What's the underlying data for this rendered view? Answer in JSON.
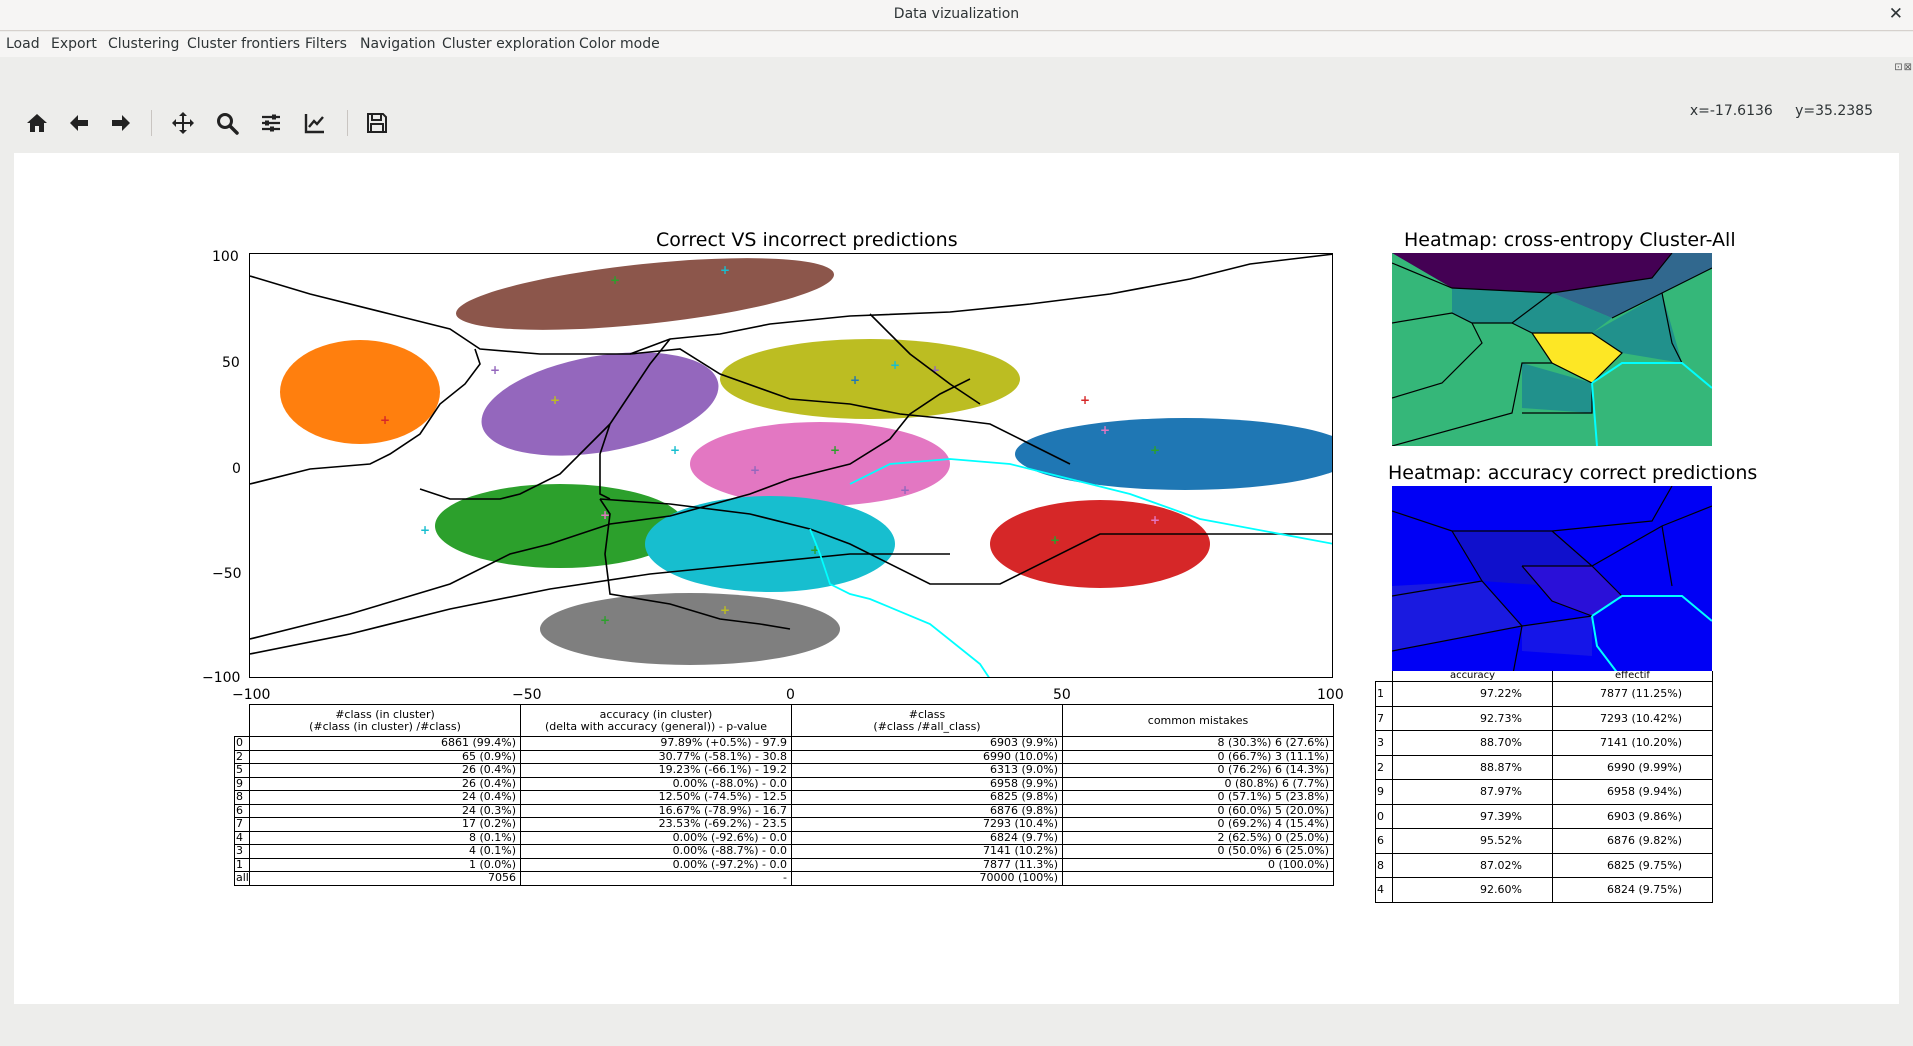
{
  "window": {
    "title": "Data vizualization",
    "close_label": "✕"
  },
  "menu": {
    "items": [
      "Load",
      "Export",
      "Clustering",
      "Cluster frontiers",
      "Filters",
      "Navigation",
      "Cluster exploration",
      "Color mode"
    ]
  },
  "dock_buttons": "⊡⊠",
  "toolbar": {
    "buttons": [
      {
        "icon": "home-icon",
        "label": "Home"
      },
      {
        "icon": "back-arrow-icon",
        "label": "Back"
      },
      {
        "icon": "forward-arrow-icon",
        "label": "Forward"
      },
      {
        "icon": "pan-icon",
        "label": "Pan"
      },
      {
        "icon": "zoom-icon",
        "label": "Zoom"
      },
      {
        "icon": "subplots-icon",
        "label": "Configure subplots"
      },
      {
        "icon": "edit-curve-icon",
        "label": "Edit axis"
      },
      {
        "icon": "save-icon",
        "label": "Save"
      }
    ]
  },
  "status": {
    "x": "x=-17.6136",
    "y": "y=35.2385"
  },
  "scatter": {
    "title": "Correct VS incorrect predictions",
    "x_ticks": [
      "−100",
      "−50",
      "0",
      "50",
      "100"
    ],
    "y_ticks": [
      "100",
      "50",
      "0",
      "−50",
      "−100"
    ]
  },
  "colors": {
    "c0": "#1f77b4",
    "c1": "#ff7f0e",
    "c2": "#2ca02c",
    "c3": "#d62728",
    "c4": "#9467bd",
    "c5": "#8c564b",
    "c6": "#e377c2",
    "c7": "#7f7f7f",
    "c8": "#bcbd22",
    "c9": "#17becf",
    "frontier": "#000000",
    "selected_frontier": "#00ffff"
  },
  "heatmap_ce": {
    "title": "Heatmap: cross-entropy Cluster-All"
  },
  "heatmap_acc": {
    "title": "Heatmap: accuracy correct predictions"
  },
  "cluster_table": {
    "headers": [
      [
        "#class (in cluster)",
        "(#class (in cluster) /#class)"
      ],
      [
        "accuracy (in cluster)",
        "(delta with accuracy (general)) - p-value"
      ],
      [
        "#class",
        "(#class /#all_class)"
      ],
      [
        "common mistakes"
      ]
    ],
    "rows": [
      {
        "label": "0",
        "count": "6861 (99.4%)",
        "accuracy": "97.89% (+0.5%) - 97.9",
        "class": "6903 (9.9%)",
        "mistakes": "8 (30.3%) 6 (27.6%)"
      },
      {
        "label": "2",
        "count": "65 (0.9%)",
        "accuracy": "30.77% (-58.1%) - 30.8",
        "class": "6990 (10.0%)",
        "mistakes": "0 (66.7%) 3 (11.1%)"
      },
      {
        "label": "5",
        "count": "26 (0.4%)",
        "accuracy": "19.23% (-66.1%) - 19.2",
        "class": "6313 (9.0%)",
        "mistakes": "0 (76.2%) 6 (14.3%)"
      },
      {
        "label": "9",
        "count": "26 (0.4%)",
        "accuracy": "0.00% (-88.0%) - 0.0",
        "class": "6958 (9.9%)",
        "mistakes": "0 (80.8%) 6 (7.7%)"
      },
      {
        "label": "8",
        "count": "24 (0.4%)",
        "accuracy": "12.50% (-74.5%) - 12.5",
        "class": "6825 (9.8%)",
        "mistakes": "0 (57.1%) 5 (23.8%)"
      },
      {
        "label": "6",
        "count": "24 (0.3%)",
        "accuracy": "16.67% (-78.9%) - 16.7",
        "class": "6876 (9.8%)",
        "mistakes": "0 (60.0%) 5 (20.0%)"
      },
      {
        "label": "7",
        "count": "17 (0.2%)",
        "accuracy": "23.53% (-69.2%) - 23.5",
        "class": "7293 (10.4%)",
        "mistakes": "0 (69.2%) 4 (15.4%)"
      },
      {
        "label": "4",
        "count": "8 (0.1%)",
        "accuracy": "0.00% (-92.6%) - 0.0",
        "class": "6824 (9.7%)",
        "mistakes": "2 (62.5%) 0 (25.0%)"
      },
      {
        "label": "3",
        "count": "4 (0.1%)",
        "accuracy": "0.00% (-88.7%) - 0.0",
        "class": "7141 (10.2%)",
        "mistakes": "0 (50.0%) 6 (25.0%)"
      },
      {
        "label": "1",
        "count": "1 (0.0%)",
        "accuracy": "0.00% (-97.2%) - 0.0",
        "class": "7877 (11.3%)",
        "mistakes": "0 (100.0%)"
      },
      {
        "label": "all",
        "count": "7056",
        "accuracy": "-",
        "class": "70000 (100%)",
        "mistakes": ""
      }
    ]
  },
  "class_table": {
    "headers": [
      "accuracy",
      "effectif"
    ],
    "rows": [
      {
        "label": "1",
        "accuracy": "97.22%",
        "effectif": "7877 (11.25%)"
      },
      {
        "label": "7",
        "accuracy": "92.73%",
        "effectif": "7293 (10.42%)"
      },
      {
        "label": "3",
        "accuracy": "88.70%",
        "effectif": "7141 (10.20%)"
      },
      {
        "label": "2",
        "accuracy": "88.87%",
        "effectif": "6990 (9.99%)"
      },
      {
        "label": "9",
        "accuracy": "87.97%",
        "effectif": "6958 (9.94%)"
      },
      {
        "label": "0",
        "accuracy": "97.39%",
        "effectif": "6903 (9.86%)"
      },
      {
        "label": "6",
        "accuracy": "95.52%",
        "effectif": "6876 (9.82%)"
      },
      {
        "label": "8",
        "accuracy": "87.02%",
        "effectif": "6825 (9.75%)"
      },
      {
        "label": "4",
        "accuracy": "92.60%",
        "effectif": "6824 (9.75%)"
      }
    ]
  }
}
